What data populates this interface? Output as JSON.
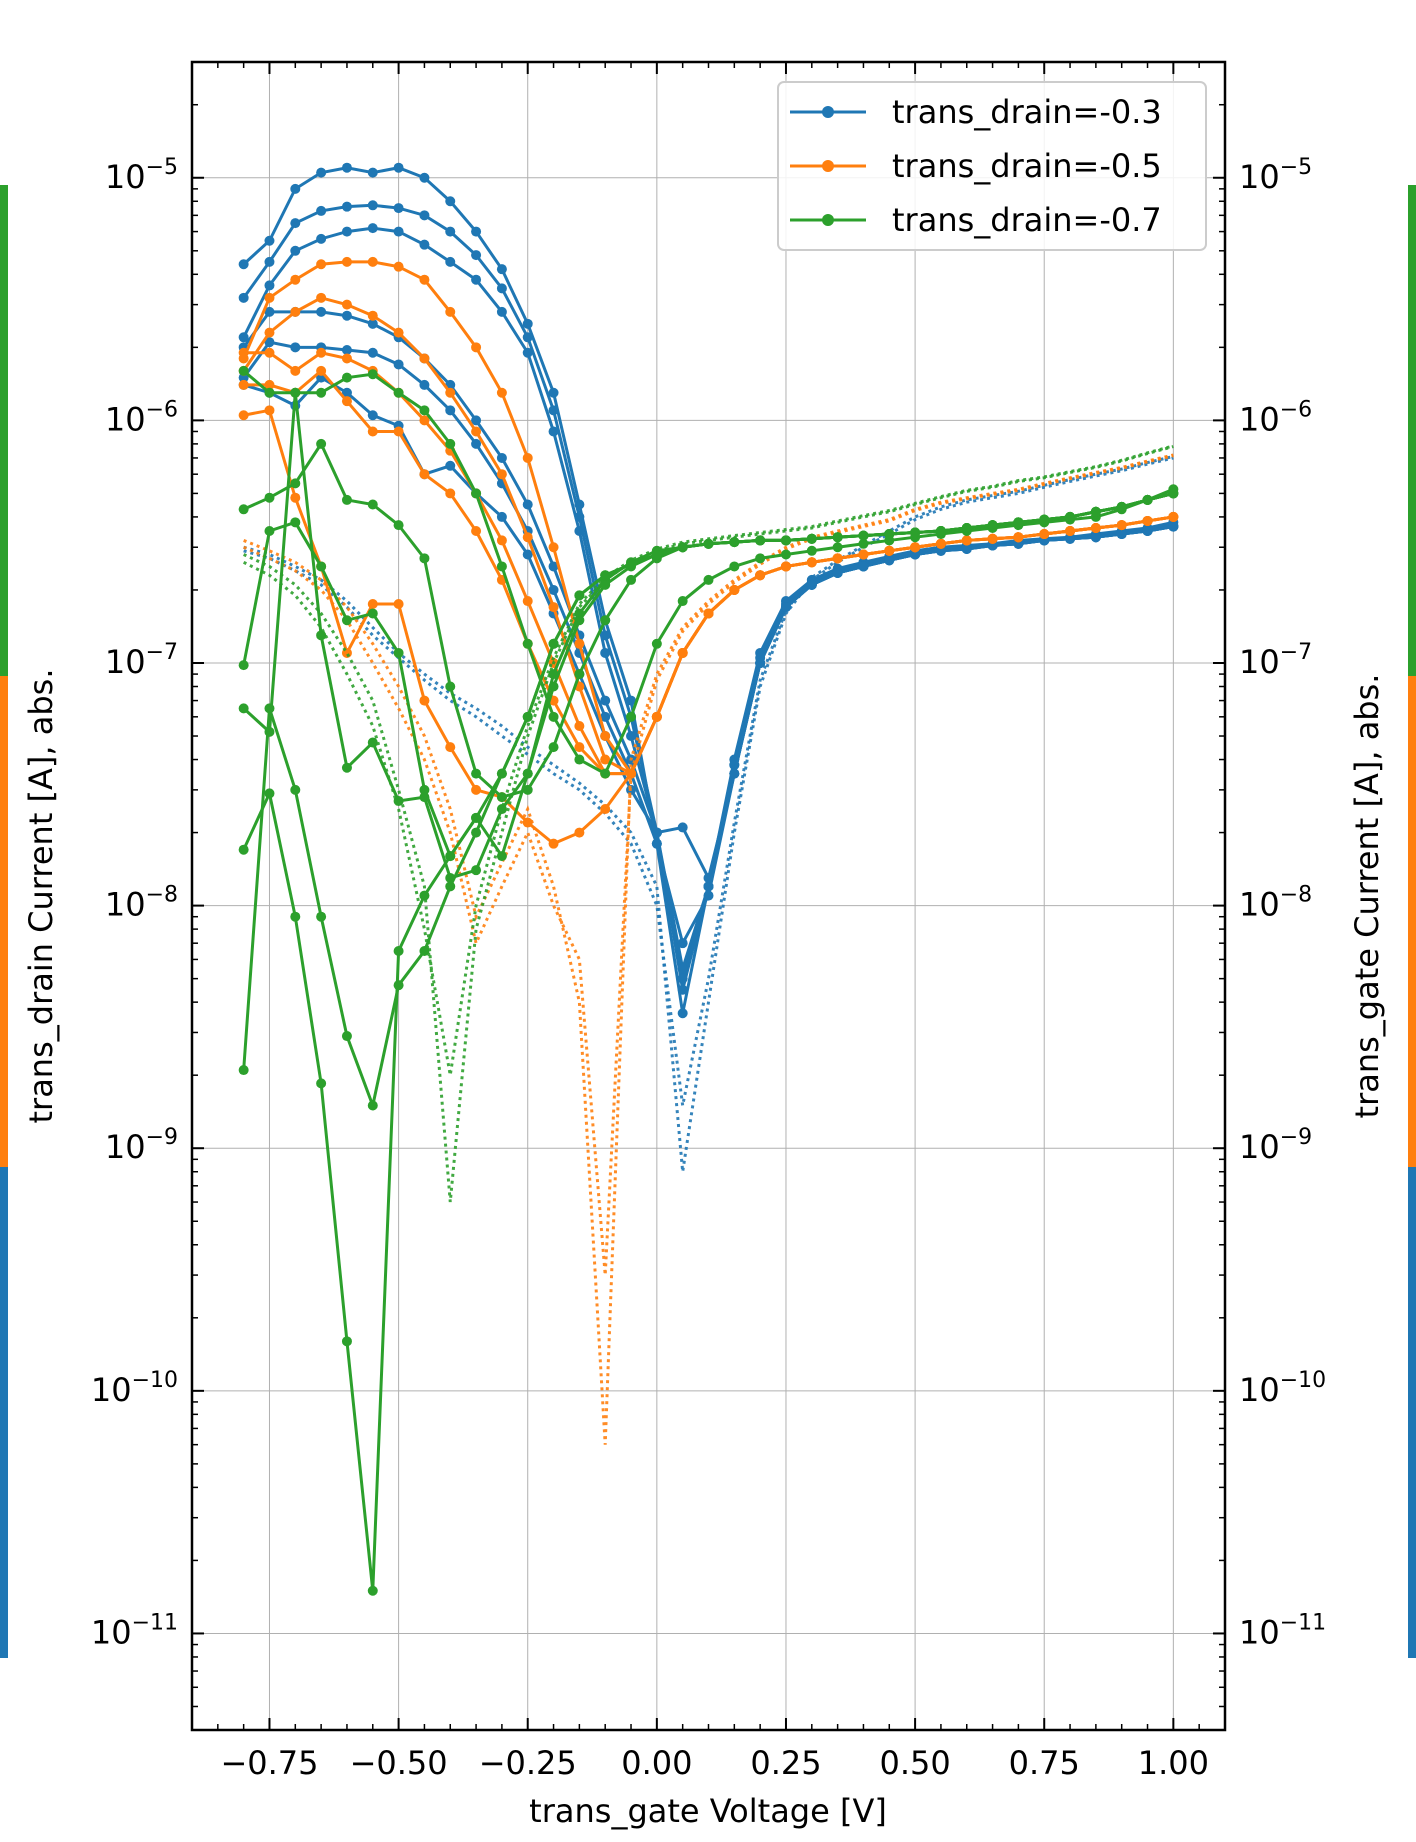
{
  "chart_data": {
    "type": "line",
    "xlabel": "trans_gate Voltage [V]",
    "ylabel_left": "trans_drain Current [A], abs.",
    "ylabel_right": "trans_gate Current [A], abs.",
    "xlim": [
      -0.9,
      1.1
    ],
    "ylim": [
      4e-12,
      3e-05
    ],
    "yscale": "log",
    "grid": true,
    "legend_position": "top-right",
    "x_ticks": [
      "−0.75",
      "−0.50",
      "−0.25",
      "0.00",
      "0.25",
      "0.50",
      "0.75",
      "1.00"
    ],
    "x_tick_values": [
      -0.75,
      -0.5,
      -0.25,
      0.0,
      0.25,
      0.5,
      0.75,
      1.0
    ],
    "y_tick_exponents": [
      -5,
      -6,
      -7,
      -8,
      -9,
      -10,
      -11
    ],
    "x": [
      -0.8,
      -0.75,
      -0.7,
      -0.65,
      -0.6,
      -0.55,
      -0.5,
      -0.45,
      -0.4,
      -0.35,
      -0.3,
      -0.25,
      -0.2,
      -0.15,
      -0.1,
      -0.05,
      0.0,
      0.05,
      0.1,
      0.15,
      0.2,
      0.25,
      0.3,
      0.35,
      0.4,
      0.45,
      0.5,
      0.55,
      0.6,
      0.65,
      0.7,
      0.75,
      0.8,
      0.85,
      0.9,
      0.95,
      1.0
    ],
    "series": [
      {
        "name": "trans_drain=-0.3",
        "color": "#1f77b4",
        "drain_curves": [
          [
            4.4e-06,
            5.5e-06,
            9e-06,
            1.05e-05,
            1.1e-05,
            1.05e-05,
            1.1e-05,
            1e-05,
            8e-06,
            6e-06,
            4.2e-06,
            2.5e-06,
            1.3e-06,
            4.5e-07,
            1.5e-07,
            7e-08,
            1.8e-08,
            3.6e-09,
            1.2e-08,
            4e-08,
            1.1e-07,
            1.8e-07,
            2.2e-07,
            2.45e-07,
            2.6e-07,
            2.75e-07,
            2.9e-07,
            3e-07,
            3.05e-07,
            3.1e-07,
            3.2e-07,
            3.25e-07,
            3.3e-07,
            3.4e-07,
            3.5e-07,
            3.6e-07,
            3.8e-07
          ],
          [
            3.2e-06,
            4.5e-06,
            6.5e-06,
            7.3e-06,
            7.6e-06,
            7.7e-06,
            7.5e-06,
            7e-06,
            6e-06,
            4.8e-06,
            3.5e-06,
            2.2e-06,
            1.1e-06,
            4e-07,
            1.3e-07,
            6e-08,
            2e-08,
            4.5e-09,
            1.2e-08,
            3.8e-08,
            1.05e-07,
            1.75e-07,
            2.15e-07,
            2.4e-07,
            2.55e-07,
            2.7e-07,
            2.85e-07,
            2.95e-07,
            3e-07,
            3.05e-07,
            3.15e-07,
            3.2e-07,
            3.3e-07,
            3.35e-07,
            3.45e-07,
            3.55e-07,
            3.7e-07
          ],
          [
            2.2e-06,
            3.6e-06,
            5e-06,
            5.6e-06,
            6e-06,
            6.2e-06,
            6e-06,
            5.3e-06,
            4.5e-06,
            3.8e-06,
            2.8e-06,
            1.9e-06,
            9e-07,
            3.5e-07,
            1.1e-07,
            5e-08,
            2e-08,
            5e-09,
            1.2e-08,
            3.5e-08,
            1e-07,
            1.7e-07,
            2.1e-07,
            2.35e-07,
            2.5e-07,
            2.65e-07,
            2.8e-07,
            2.9e-07,
            3e-07,
            3.05e-07,
            3.1e-07,
            3.2e-07,
            3.25e-07,
            3.3e-07,
            3.4e-07,
            3.5e-07,
            3.65e-07
          ],
          [
            2e-06,
            2.8e-06,
            2.8e-06,
            2.8e-06,
            2.7e-06,
            2.5e-06,
            2.2e-06,
            1.8e-06,
            1.4e-06,
            1e-06,
            7e-07,
            4.5e-07,
            2.5e-07,
            1.3e-07,
            7e-08,
            4e-08,
            2e-08,
            5.5e-09,
            1.2e-08,
            3.8e-08,
            1e-07,
            1.7e-07,
            2.1e-07,
            2.35e-07,
            2.5e-07,
            2.65e-07,
            2.8e-07,
            2.9e-07,
            2.95e-07,
            3.05e-07,
            3.1e-07,
            3.2e-07,
            3.25e-07,
            3.3e-07,
            3.4e-07,
            3.5e-07,
            3.65e-07
          ],
          [
            1.5e-06,
            2.1e-06,
            2e-06,
            2e-06,
            1.95e-06,
            1.9e-06,
            1.7e-06,
            1.4e-06,
            1.1e-06,
            8e-07,
            5.5e-07,
            3.5e-07,
            2e-07,
            1.1e-07,
            6e-08,
            3.5e-08,
            1.8e-08,
            7e-09,
            1.1e-08,
            3.5e-08,
            1e-07,
            1.7e-07,
            2.1e-07,
            2.35e-07,
            2.5e-07,
            2.65e-07,
            2.8e-07,
            2.9e-07,
            2.95e-07,
            3.05e-07,
            3.1e-07,
            3.2e-07,
            3.25e-07,
            3.3e-07,
            3.4e-07,
            3.5e-07,
            3.65e-07
          ],
          [
            1.4e-06,
            1.3e-06,
            1.15e-06,
            1.5e-06,
            1.3e-06,
            1.05e-06,
            9.5e-07,
            6e-07,
            6.5e-07,
            5e-07,
            4e-07,
            2.8e-07,
            1.6e-07,
            9e-08,
            5e-08,
            3e-08,
            2e-08,
            2.1e-08,
            1.3e-08,
            3.5e-08,
            1e-07,
            1.7e-07,
            2.1e-07,
            2.35e-07,
            2.5e-07,
            2.65e-07,
            2.8e-07,
            2.9e-07,
            2.95e-07,
            3.05e-07,
            3.1e-07,
            3.2e-07,
            3.25e-07,
            3.3e-07,
            3.4e-07,
            3.5e-07,
            3.65e-07
          ]
        ],
        "gate_curves": [
          [
            3e-07,
            2.8e-07,
            2.5e-07,
            2.2e-07,
            1.8e-07,
            1.4e-07,
            1.1e-07,
            9e-08,
            7.5e-08,
            6.5e-08,
            5.5e-08,
            4.5e-08,
            3.8e-08,
            3.2e-08,
            2.6e-08,
            2e-08,
            1.2e-08,
            8e-10,
            4e-09,
            2e-08,
            8e-08,
            1.6e-07,
            2.2e-07,
            2.6e-07,
            3e-07,
            3.4e-07,
            3.9e-07,
            4.3e-07,
            4.6e-07,
            4.8e-07,
            5e-07,
            5.3e-07,
            5.6e-07,
            5.9e-07,
            6.2e-07,
            6.6e-07,
            7e-07
          ],
          [
            2.9e-07,
            2.7e-07,
            2.4e-07,
            2.1e-07,
            1.7e-07,
            1.3e-07,
            1.05e-07,
            8.5e-08,
            7e-08,
            6e-08,
            5e-08,
            4.2e-08,
            3.5e-08,
            3e-08,
            2.4e-08,
            1.8e-08,
            1e-08,
            1.5e-09,
            5e-09,
            2.2e-08,
            8.5e-08,
            1.65e-07,
            2.25e-07,
            2.65e-07,
            3.05e-07,
            3.5e-07,
            4e-07,
            4.4e-07,
            4.7e-07,
            4.9e-07,
            5.1e-07,
            5.4e-07,
            5.7e-07,
            6e-07,
            6.3e-07,
            6.7e-07,
            7.1e-07
          ]
        ]
      },
      {
        "name": "trans_drain=-0.5",
        "color": "#ff7f0e",
        "drain_curves": [
          [
            1.8e-06,
            3.2e-06,
            3.8e-06,
            4.4e-06,
            4.5e-06,
            4.5e-06,
            4.3e-06,
            3.8e-06,
            2.8e-06,
            2e-06,
            1.3e-06,
            7e-07,
            3e-07,
            1.2e-07,
            5e-08,
            3.5e-08,
            6e-08,
            1.1e-07,
            1.6e-07,
            2e-07,
            2.3e-07,
            2.5e-07,
            2.6e-07,
            2.7e-07,
            2.8e-07,
            2.9e-07,
            3e-07,
            3.1e-07,
            3.2e-07,
            3.25e-07,
            3.3e-07,
            3.4e-07,
            3.5e-07,
            3.6e-07,
            3.7e-07,
            3.85e-07,
            4e-07
          ],
          [
            1.6e-06,
            2.3e-06,
            2.8e-06,
            3.2e-06,
            3e-06,
            2.7e-06,
            2.3e-06,
            1.8e-06,
            1.3e-06,
            9e-07,
            6e-07,
            3.3e-07,
            1.7e-07,
            8e-08,
            4e-08,
            3.5e-08,
            6e-08,
            1.1e-07,
            1.6e-07,
            2e-07,
            2.3e-07,
            2.5e-07,
            2.6e-07,
            2.7e-07,
            2.8e-07,
            2.9e-07,
            3e-07,
            3.1e-07,
            3.2e-07,
            3.25e-07,
            3.3e-07,
            3.4e-07,
            3.5e-07,
            3.6e-07,
            3.7e-07,
            3.85e-07,
            4e-07
          ],
          [
            1.9e-06,
            1.9e-06,
            1.6e-06,
            1.9e-06,
            1.8e-06,
            1.6e-06,
            1.3e-06,
            1e-06,
            7.5e-07,
            5e-07,
            3.2e-07,
            1.8e-07,
            1e-07,
            5.5e-08,
            3.5e-08,
            3.5e-08,
            6e-08,
            1.1e-07,
            1.6e-07,
            2e-07,
            2.3e-07,
            2.5e-07,
            2.6e-07,
            2.7e-07,
            2.8e-07,
            2.9e-07,
            3e-07,
            3.1e-07,
            3.2e-07,
            3.25e-07,
            3.3e-07,
            3.4e-07,
            3.5e-07,
            3.6e-07,
            3.7e-07,
            3.85e-07,
            4e-07
          ],
          [
            1.4e-06,
            1.4e-06,
            1.3e-06,
            1.6e-06,
            1.2e-06,
            9e-07,
            9e-07,
            6e-07,
            5e-07,
            3.5e-07,
            2.2e-07,
            1.2e-07,
            7e-08,
            4.5e-08,
            3.5e-08,
            3.5e-08,
            6e-08,
            1.1e-07,
            1.6e-07,
            2e-07,
            2.3e-07,
            2.5e-07,
            2.6e-07,
            2.7e-07,
            2.8e-07,
            2.9e-07,
            3e-07,
            3.1e-07,
            3.2e-07,
            3.25e-07,
            3.3e-07,
            3.4e-07,
            3.5e-07,
            3.6e-07,
            3.7e-07,
            3.85e-07,
            4e-07
          ],
          [
            1.05e-06,
            1.1e-06,
            4.8e-07,
            2.5e-07,
            1.1e-07,
            1.75e-07,
            1.75e-07,
            7e-08,
            4.5e-08,
            3e-08,
            2.8e-08,
            2.2e-08,
            1.8e-08,
            2e-08,
            2.5e-08,
            3.5e-08,
            6e-08,
            1.1e-07,
            1.6e-07,
            2e-07,
            2.3e-07,
            2.5e-07,
            2.6e-07,
            2.7e-07,
            2.8e-07,
            2.9e-07,
            3e-07,
            3.1e-07,
            3.2e-07,
            3.25e-07,
            3.3e-07,
            3.4e-07,
            3.5e-07,
            3.6e-07,
            3.7e-07,
            3.85e-07,
            4e-07
          ]
        ],
        "gate_curves": [
          [
            3.2e-07,
            2.9e-07,
            2.6e-07,
            2.2e-07,
            1.7e-07,
            1.2e-07,
            8e-08,
            5e-08,
            2.5e-08,
            9e-09,
            1.5e-08,
            2.5e-08,
            1.2e-08,
            4e-09,
            6e-11,
            4e-08,
            9e-08,
            1.4e-07,
            1.8e-07,
            2.2e-07,
            2.6e-07,
            3e-07,
            3.3e-07,
            3.5e-07,
            3.7e-07,
            3.9e-07,
            4.3e-07,
            4.6e-07,
            4.8e-07,
            5e-07,
            5.2e-07,
            5.5e-07,
            5.8e-07,
            6.1e-07,
            6.4e-07,
            6.8e-07,
            7.2e-07
          ],
          [
            3e-07,
            2.7e-07,
            2.4e-07,
            2e-07,
            1.5e-07,
            1e-07,
            6.5e-08,
            4e-08,
            2e-08,
            7e-09,
            1.2e-08,
            2e-08,
            1e-08,
            6e-09,
            3e-10,
            3.5e-08,
            8.5e-08,
            1.35e-07,
            1.75e-07,
            2.15e-07,
            2.55e-07,
            2.95e-07,
            3.25e-07,
            3.45e-07,
            3.65e-07,
            3.85e-07,
            4.25e-07,
            4.55e-07,
            4.75e-07,
            4.95e-07,
            5.15e-07,
            5.45e-07,
            5.75e-07,
            6.05e-07,
            6.35e-07,
            6.75e-07,
            7.15e-07
          ]
        ]
      },
      {
        "name": "trans_drain=-0.7",
        "color": "#2ca02c",
        "drain_curves": [
          [
            1.6e-06,
            1.3e-06,
            1.3e-06,
            1.3e-06,
            1.5e-06,
            1.55e-06,
            1.3e-06,
            1.1e-06,
            8e-07,
            5e-07,
            2.5e-07,
            1.2e-07,
            6e-08,
            4e-08,
            3.5e-08,
            6e-08,
            1.2e-07,
            1.8e-07,
            2.2e-07,
            2.5e-07,
            2.7e-07,
            2.8e-07,
            2.9e-07,
            3e-07,
            3.1e-07,
            3.2e-07,
            3.3e-07,
            3.4e-07,
            3.5e-07,
            3.6e-07,
            3.7e-07,
            3.8e-07,
            3.9e-07,
            4e-07,
            4.3e-07,
            4.7e-07,
            5.2e-07
          ],
          [
            4.3e-07,
            4.8e-07,
            5.5e-07,
            8e-07,
            4.7e-07,
            4.5e-07,
            3.7e-07,
            2.7e-07,
            8e-08,
            3.5e-08,
            2.8e-08,
            3e-08,
            4.5e-08,
            9e-08,
            1.5e-07,
            2.2e-07,
            2.7e-07,
            3e-07,
            3.1e-07,
            3.15e-07,
            3.2e-07,
            3.2e-07,
            3.25e-07,
            3.3e-07,
            3.35e-07,
            3.4e-07,
            3.45e-07,
            3.5e-07,
            3.6e-07,
            3.7e-07,
            3.8e-07,
            3.9e-07,
            4e-07,
            4.2e-07,
            4.4e-07,
            4.7e-07,
            5e-07
          ],
          [
            9.8e-08,
            3.5e-07,
            3.8e-07,
            2.5e-07,
            1.5e-07,
            1.6e-07,
            1.1e-07,
            3e-08,
            1.6e-08,
            2.3e-08,
            1.6e-08,
            3.5e-08,
            9e-08,
            1.6e-07,
            2.2e-07,
            2.6e-07,
            2.9e-07,
            3e-07,
            3.1e-07,
            3.15e-07,
            3.2e-07,
            3.2e-07,
            3.25e-07,
            3.3e-07,
            3.35e-07,
            3.4e-07,
            3.45e-07,
            3.5e-07,
            3.6e-07,
            3.7e-07,
            3.8e-07,
            3.9e-07,
            4e-07,
            4.2e-07,
            4.4e-07,
            4.7e-07,
            5e-07
          ],
          [
            6.5e-08,
            5.2e-08,
            1.3e-06,
            1.3e-07,
            3.7e-08,
            4.7e-08,
            2.7e-08,
            2.8e-08,
            1.3e-08,
            1.4e-08,
            2.5e-08,
            3.5e-08,
            8e-08,
            1.5e-07,
            2.1e-07,
            2.5e-07,
            2.8e-07,
            3e-07,
            3.1e-07,
            3.15e-07,
            3.2e-07,
            3.2e-07,
            3.25e-07,
            3.3e-07,
            3.35e-07,
            3.4e-07,
            3.45e-07,
            3.5e-07,
            3.6e-07,
            3.7e-07,
            3.8e-07,
            3.9e-07,
            4e-07,
            4.2e-07,
            4.4e-07,
            4.7e-07,
            5e-07
          ],
          [
            1.7e-08,
            2.9e-08,
            9e-09,
            1.85e-09,
            1.6e-10,
            1.5e-11,
            6.5e-09,
            1.1e-08,
            1.6e-08,
            2.3e-08,
            3.5e-08,
            6e-08,
            1.2e-07,
            1.9e-07,
            2.3e-07,
            2.55e-07,
            2.8e-07,
            3e-07,
            3.1e-07,
            3.15e-07,
            3.2e-07,
            3.2e-07,
            3.25e-07,
            3.3e-07,
            3.35e-07,
            3.4e-07,
            3.45e-07,
            3.5e-07,
            3.6e-07,
            3.7e-07,
            3.8e-07,
            3.9e-07,
            4e-07,
            4.2e-07,
            4.4e-07,
            4.7e-07,
            5e-07
          ],
          [
            2.1e-09,
            6.5e-08,
            3e-08,
            9e-09,
            2.9e-09,
            1.5e-09,
            4.7e-09,
            6.5e-09,
            1.2e-08,
            2e-08,
            3.5e-08,
            6e-08,
            1.2e-07,
            1.9e-07,
            2.3e-07,
            2.55e-07,
            2.8e-07,
            3e-07,
            3.1e-07,
            3.15e-07,
            3.2e-07,
            3.2e-07,
            3.25e-07,
            3.3e-07,
            3.35e-07,
            3.4e-07,
            3.45e-07,
            3.5e-07,
            3.6e-07,
            3.7e-07,
            3.8e-07,
            3.9e-07,
            4e-07,
            4.2e-07,
            4.4e-07,
            4.7e-07,
            5e-07
          ]
        ],
        "gate_curves": [
          [
            2.8e-07,
            2.5e-07,
            2.1e-07,
            1.6e-07,
            1.1e-07,
            7e-08,
            3e-08,
            1.2e-08,
            6e-10,
            8e-09,
            2e-08,
            5e-08,
            1e-07,
            1.7e-07,
            2.2e-07,
            2.6e-07,
            2.9e-07,
            3.1e-07,
            3.2e-07,
            3.3e-07,
            3.4e-07,
            3.5e-07,
            3.6e-07,
            3.8e-07,
            4e-07,
            4.2e-07,
            4.5e-07,
            4.8e-07,
            5.1e-07,
            5.3e-07,
            5.6e-07,
            5.8e-07,
            6.1e-07,
            6.4e-07,
            6.8e-07,
            7.3e-07,
            7.8e-07
          ],
          [
            2.6e-07,
            2.3e-07,
            1.9e-07,
            1.4e-07,
            9e-08,
            5.5e-08,
            2.5e-08,
            8e-09,
            2e-09,
            1e-08,
            2.5e-08,
            5.5e-08,
            1.05e-07,
            1.75e-07,
            2.25e-07,
            2.65e-07,
            2.95e-07,
            3.15e-07,
            3.25e-07,
            3.35e-07,
            3.45e-07,
            3.55e-07,
            3.65e-07,
            3.85e-07,
            4.05e-07,
            4.25e-07,
            4.55e-07,
            4.85e-07,
            5.15e-07,
            5.35e-07,
            5.65e-07,
            5.85e-07,
            6.15e-07,
            6.45e-07,
            6.85e-07,
            7.35e-07,
            7.85e-07
          ]
        ]
      }
    ]
  }
}
